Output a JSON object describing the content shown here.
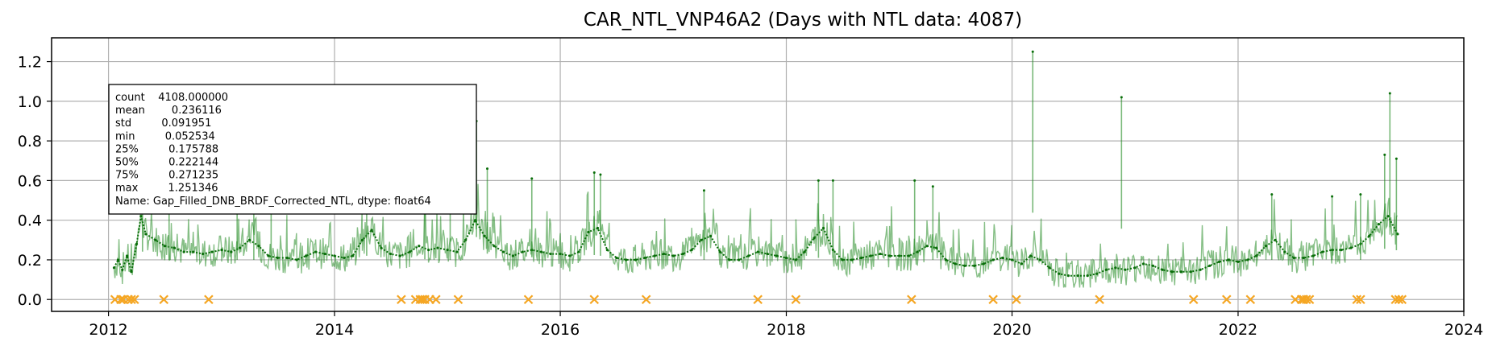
{
  "chart_data": {
    "type": "line",
    "title": "CAR_NTL_VNP46A2 (Days with NTL data: 4087)",
    "xlabel": "",
    "ylabel": "",
    "xlim": [
      "2011-07-01",
      "2024-01-01"
    ],
    "ylim": [
      -0.06,
      1.32
    ],
    "x_ticks": [
      "2012-01-01",
      "2014-01-01",
      "2016-01-01",
      "2018-01-01",
      "2020-01-01",
      "2022-01-01",
      "2024-01-01"
    ],
    "x_tick_labels": [
      "2012",
      "2014",
      "2016",
      "2018",
      "2020",
      "2022",
      "2024"
    ],
    "y_ticks": [
      0.0,
      0.2,
      0.4,
      0.6,
      0.8,
      1.0,
      1.2
    ],
    "y_tick_labels": [
      "0.0",
      "0.2",
      "0.4",
      "0.6",
      "0.8",
      "1.0",
      "1.2"
    ],
    "grid": true,
    "colors": {
      "series": "#228B22",
      "missing": "#F5A623",
      "grid": "#b0b0b0"
    },
    "series": [
      {
        "name": "Gap_Filled_DNB_BRDF_Corrected_NTL",
        "points": [
          [
            "2012-01-19",
            0.16
          ],
          [
            "2012-02-01",
            0.2
          ],
          [
            "2012-02-15",
            0.15
          ],
          [
            "2012-03-01",
            0.22
          ],
          [
            "2012-03-15",
            0.14
          ],
          [
            "2012-04-01",
            0.28
          ],
          [
            "2012-04-15",
            0.42
          ],
          [
            "2012-05-01",
            0.33
          ],
          [
            "2012-06-01",
            0.3
          ],
          [
            "2012-07-01",
            0.27
          ],
          [
            "2012-08-01",
            0.26
          ],
          [
            "2012-09-01",
            0.24
          ],
          [
            "2012-10-01",
            0.24
          ],
          [
            "2012-11-01",
            0.23
          ],
          [
            "2012-12-01",
            0.24
          ],
          [
            "2013-01-01",
            0.25
          ],
          [
            "2013-02-01",
            0.24
          ],
          [
            "2013-03-01",
            0.26
          ],
          [
            "2013-04-01",
            0.3
          ],
          [
            "2013-05-01",
            0.27
          ],
          [
            "2013-06-01",
            0.22
          ],
          [
            "2013-07-01",
            0.21
          ],
          [
            "2013-08-01",
            0.21
          ],
          [
            "2013-09-01",
            0.2
          ],
          [
            "2013-10-01",
            0.22
          ],
          [
            "2013-11-01",
            0.24
          ],
          [
            "2013-12-01",
            0.23
          ],
          [
            "2014-01-01",
            0.22
          ],
          [
            "2014-02-01",
            0.21
          ],
          [
            "2014-03-01",
            0.22
          ],
          [
            "2014-04-01",
            0.3
          ],
          [
            "2014-05-01",
            0.35
          ],
          [
            "2014-06-01",
            0.26
          ],
          [
            "2014-07-01",
            0.23
          ],
          [
            "2014-08-01",
            0.22
          ],
          [
            "2014-09-01",
            0.24
          ],
          [
            "2014-10-01",
            0.27
          ],
          [
            "2014-11-01",
            0.25
          ],
          [
            "2014-12-01",
            0.26
          ],
          [
            "2015-01-01",
            0.25
          ],
          [
            "2015-02-01",
            0.24
          ],
          [
            "2015-03-01",
            0.3
          ],
          [
            "2015-04-01",
            0.4
          ],
          [
            "2015-05-01",
            0.32
          ],
          [
            "2015-06-01",
            0.27
          ],
          [
            "2015-07-01",
            0.24
          ],
          [
            "2015-08-01",
            0.22
          ],
          [
            "2015-09-01",
            0.24
          ],
          [
            "2015-10-01",
            0.25
          ],
          [
            "2015-11-01",
            0.24
          ],
          [
            "2015-12-01",
            0.23
          ],
          [
            "2016-01-01",
            0.23
          ],
          [
            "2016-02-01",
            0.22
          ],
          [
            "2016-03-01",
            0.24
          ],
          [
            "2016-04-01",
            0.34
          ],
          [
            "2016-05-01",
            0.36
          ],
          [
            "2016-06-01",
            0.25
          ],
          [
            "2016-07-01",
            0.21
          ],
          [
            "2016-08-01",
            0.2
          ],
          [
            "2016-09-01",
            0.2
          ],
          [
            "2016-10-01",
            0.21
          ],
          [
            "2016-11-01",
            0.22
          ],
          [
            "2016-12-01",
            0.23
          ],
          [
            "2017-01-01",
            0.22
          ],
          [
            "2017-02-01",
            0.23
          ],
          [
            "2017-03-01",
            0.25
          ],
          [
            "2017-04-01",
            0.3
          ],
          [
            "2017-05-01",
            0.32
          ],
          [
            "2017-06-01",
            0.24
          ],
          [
            "2017-07-01",
            0.2
          ],
          [
            "2017-08-01",
            0.2
          ],
          [
            "2017-09-01",
            0.22
          ],
          [
            "2017-10-01",
            0.24
          ],
          [
            "2017-11-01",
            0.23
          ],
          [
            "2017-12-01",
            0.22
          ],
          [
            "2018-01-01",
            0.21
          ],
          [
            "2018-02-01",
            0.2
          ],
          [
            "2018-03-01",
            0.24
          ],
          [
            "2018-04-01",
            0.31
          ],
          [
            "2018-05-01",
            0.36
          ],
          [
            "2018-06-01",
            0.25
          ],
          [
            "2018-07-01",
            0.2
          ],
          [
            "2018-08-01",
            0.2
          ],
          [
            "2018-09-01",
            0.21
          ],
          [
            "2018-10-01",
            0.22
          ],
          [
            "2018-11-01",
            0.23
          ],
          [
            "2018-12-01",
            0.22
          ],
          [
            "2019-01-01",
            0.22
          ],
          [
            "2019-02-01",
            0.22
          ],
          [
            "2019-03-01",
            0.24
          ],
          [
            "2019-04-01",
            0.27
          ],
          [
            "2019-05-01",
            0.26
          ],
          [
            "2019-06-01",
            0.2
          ],
          [
            "2019-07-01",
            0.18
          ],
          [
            "2019-08-01",
            0.17
          ],
          [
            "2019-09-01",
            0.17
          ],
          [
            "2019-10-01",
            0.18
          ],
          [
            "2019-11-01",
            0.2
          ],
          [
            "2019-12-01",
            0.21
          ],
          [
            "2020-01-01",
            0.2
          ],
          [
            "2020-02-01",
            0.18
          ],
          [
            "2020-03-01",
            0.22
          ],
          [
            "2020-04-01",
            0.2
          ],
          [
            "2020-05-01",
            0.16
          ],
          [
            "2020-06-01",
            0.13
          ],
          [
            "2020-07-01",
            0.12
          ],
          [
            "2020-08-01",
            0.12
          ],
          [
            "2020-09-01",
            0.12
          ],
          [
            "2020-10-01",
            0.13
          ],
          [
            "2020-11-01",
            0.15
          ],
          [
            "2020-12-01",
            0.16
          ],
          [
            "2021-01-01",
            0.15
          ],
          [
            "2021-02-01",
            0.16
          ],
          [
            "2021-03-01",
            0.18
          ],
          [
            "2021-04-01",
            0.17
          ],
          [
            "2021-05-01",
            0.15
          ],
          [
            "2021-06-01",
            0.14
          ],
          [
            "2021-07-01",
            0.14
          ],
          [
            "2021-08-01",
            0.14
          ],
          [
            "2021-09-01",
            0.15
          ],
          [
            "2021-10-01",
            0.17
          ],
          [
            "2021-11-01",
            0.19
          ],
          [
            "2021-12-01",
            0.2
          ],
          [
            "2022-01-01",
            0.19
          ],
          [
            "2022-02-01",
            0.2
          ],
          [
            "2022-03-01",
            0.22
          ],
          [
            "2022-04-01",
            0.27
          ],
          [
            "2022-05-01",
            0.3
          ],
          [
            "2022-06-01",
            0.24
          ],
          [
            "2022-07-01",
            0.21
          ],
          [
            "2022-08-01",
            0.21
          ],
          [
            "2022-09-01",
            0.22
          ],
          [
            "2022-10-01",
            0.24
          ],
          [
            "2022-11-01",
            0.25
          ],
          [
            "2022-12-01",
            0.25
          ],
          [
            "2023-01-01",
            0.26
          ],
          [
            "2023-02-01",
            0.28
          ],
          [
            "2023-03-01",
            0.32
          ],
          [
            "2023-04-01",
            0.38
          ],
          [
            "2023-05-01",
            0.42
          ],
          [
            "2023-06-01",
            0.33
          ]
        ],
        "spikes": [
          [
            "2012-04-20",
            0.69
          ],
          [
            "2012-07-15",
            0.52
          ],
          [
            "2013-02-20",
            0.56
          ],
          [
            "2013-04-15",
            0.55
          ],
          [
            "2013-06-10",
            0.49
          ],
          [
            "2014-04-15",
            0.63
          ],
          [
            "2014-10-20",
            0.58
          ],
          [
            "2015-01-10",
            0.57
          ],
          [
            "2015-04-05",
            0.9
          ],
          [
            "2015-05-10",
            0.66
          ],
          [
            "2015-10-01",
            0.61
          ],
          [
            "2016-04-20",
            0.64
          ],
          [
            "2016-05-10",
            0.63
          ],
          [
            "2017-04-10",
            0.55
          ],
          [
            "2018-04-15",
            0.6
          ],
          [
            "2018-06-01",
            0.6
          ],
          [
            "2019-02-20",
            0.6
          ],
          [
            "2019-04-20",
            0.57
          ],
          [
            "2020-03-08",
            1.25
          ],
          [
            "2020-12-20",
            1.02
          ],
          [
            "2022-04-20",
            0.53
          ],
          [
            "2022-11-01",
            0.52
          ],
          [
            "2023-02-01",
            0.53
          ],
          [
            "2023-04-20",
            0.73
          ],
          [
            "2023-05-07",
            1.04
          ],
          [
            "2023-05-28",
            0.71
          ]
        ]
      }
    ],
    "missing_days": {
      "marker": "x",
      "value": 0.0,
      "dates": [
        "2012-01-22",
        "2012-02-10",
        "2012-02-18",
        "2012-03-05",
        "2012-03-15",
        "2012-03-25",
        "2012-06-28",
        "2012-11-20",
        "2014-08-05",
        "2014-09-20",
        "2014-10-05",
        "2014-10-12",
        "2014-10-20",
        "2014-11-05",
        "2014-11-25",
        "2015-02-05",
        "2015-09-20",
        "2016-04-20",
        "2016-10-05",
        "2017-10-01",
        "2018-02-01",
        "2019-02-10",
        "2019-11-01",
        "2020-01-15",
        "2020-10-10",
        "2021-08-10",
        "2021-11-25",
        "2022-02-10",
        "2022-07-05",
        "2022-07-25",
        "2022-08-01",
        "2022-08-10",
        "2022-08-20",
        "2023-01-20",
        "2023-02-01",
        "2023-05-25",
        "2023-06-05",
        "2023-06-15"
      ]
    }
  },
  "stats_box": {
    "lines": [
      "count    4108.000000",
      "mean        0.236116",
      "std         0.091951",
      "min         0.052534",
      "25%         0.175788",
      "50%         0.222144",
      "75%         0.271235",
      "max         1.251346",
      "Name: Gap_Filled_DNB_BRDF_Corrected_NTL, dtype: float64"
    ]
  }
}
